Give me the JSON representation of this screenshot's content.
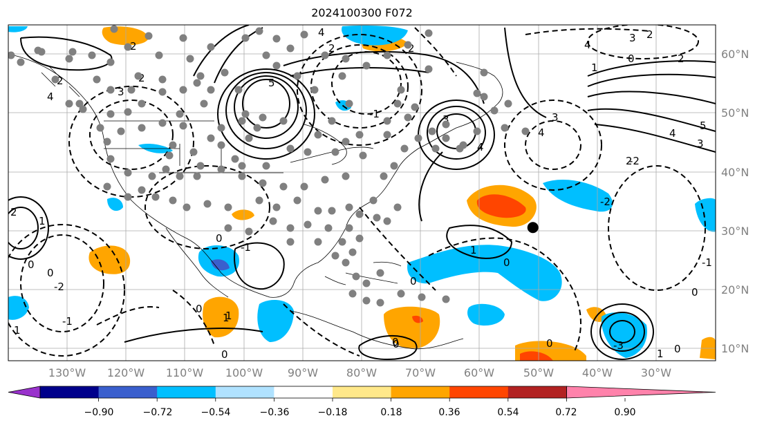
{
  "title": "2024100300 F072",
  "map": {
    "projection": "cylindrical",
    "lon_range": [
      -140,
      -20
    ],
    "lat_range": [
      8,
      66
    ],
    "lat_labels": [
      "60°N",
      "50°N",
      "40°N",
      "30°N",
      "20°N",
      "10°N"
    ],
    "lon_labels": [
      "130°W",
      "120°W",
      "110°W",
      "100°W",
      "90°W",
      "80°W",
      "70°W",
      "60°W",
      "50°W",
      "40°W",
      "30°W"
    ],
    "grid": true,
    "contour_labels": [
      "2",
      "3",
      "4",
      "5",
      "1",
      "0",
      "-1",
      "-2",
      "-3"
    ],
    "marked_point": {
      "lon": -51,
      "lat": 31
    }
  },
  "colorbar": {
    "ticks": [
      "−0.90",
      "−0.72",
      "−0.54",
      "−0.36",
      "−0.18",
      "0.18",
      "0.36",
      "0.54",
      "0.72",
      "0.90"
    ],
    "colors": [
      "#9932cc",
      "#00008b",
      "#3a5fcd",
      "#00bfff",
      "#b0e2ff",
      "#ffffff",
      "#ffe88a",
      "#ffa500",
      "#ff4500",
      "#b22222",
      "#ff82ab"
    ],
    "extend": "both"
  }
}
